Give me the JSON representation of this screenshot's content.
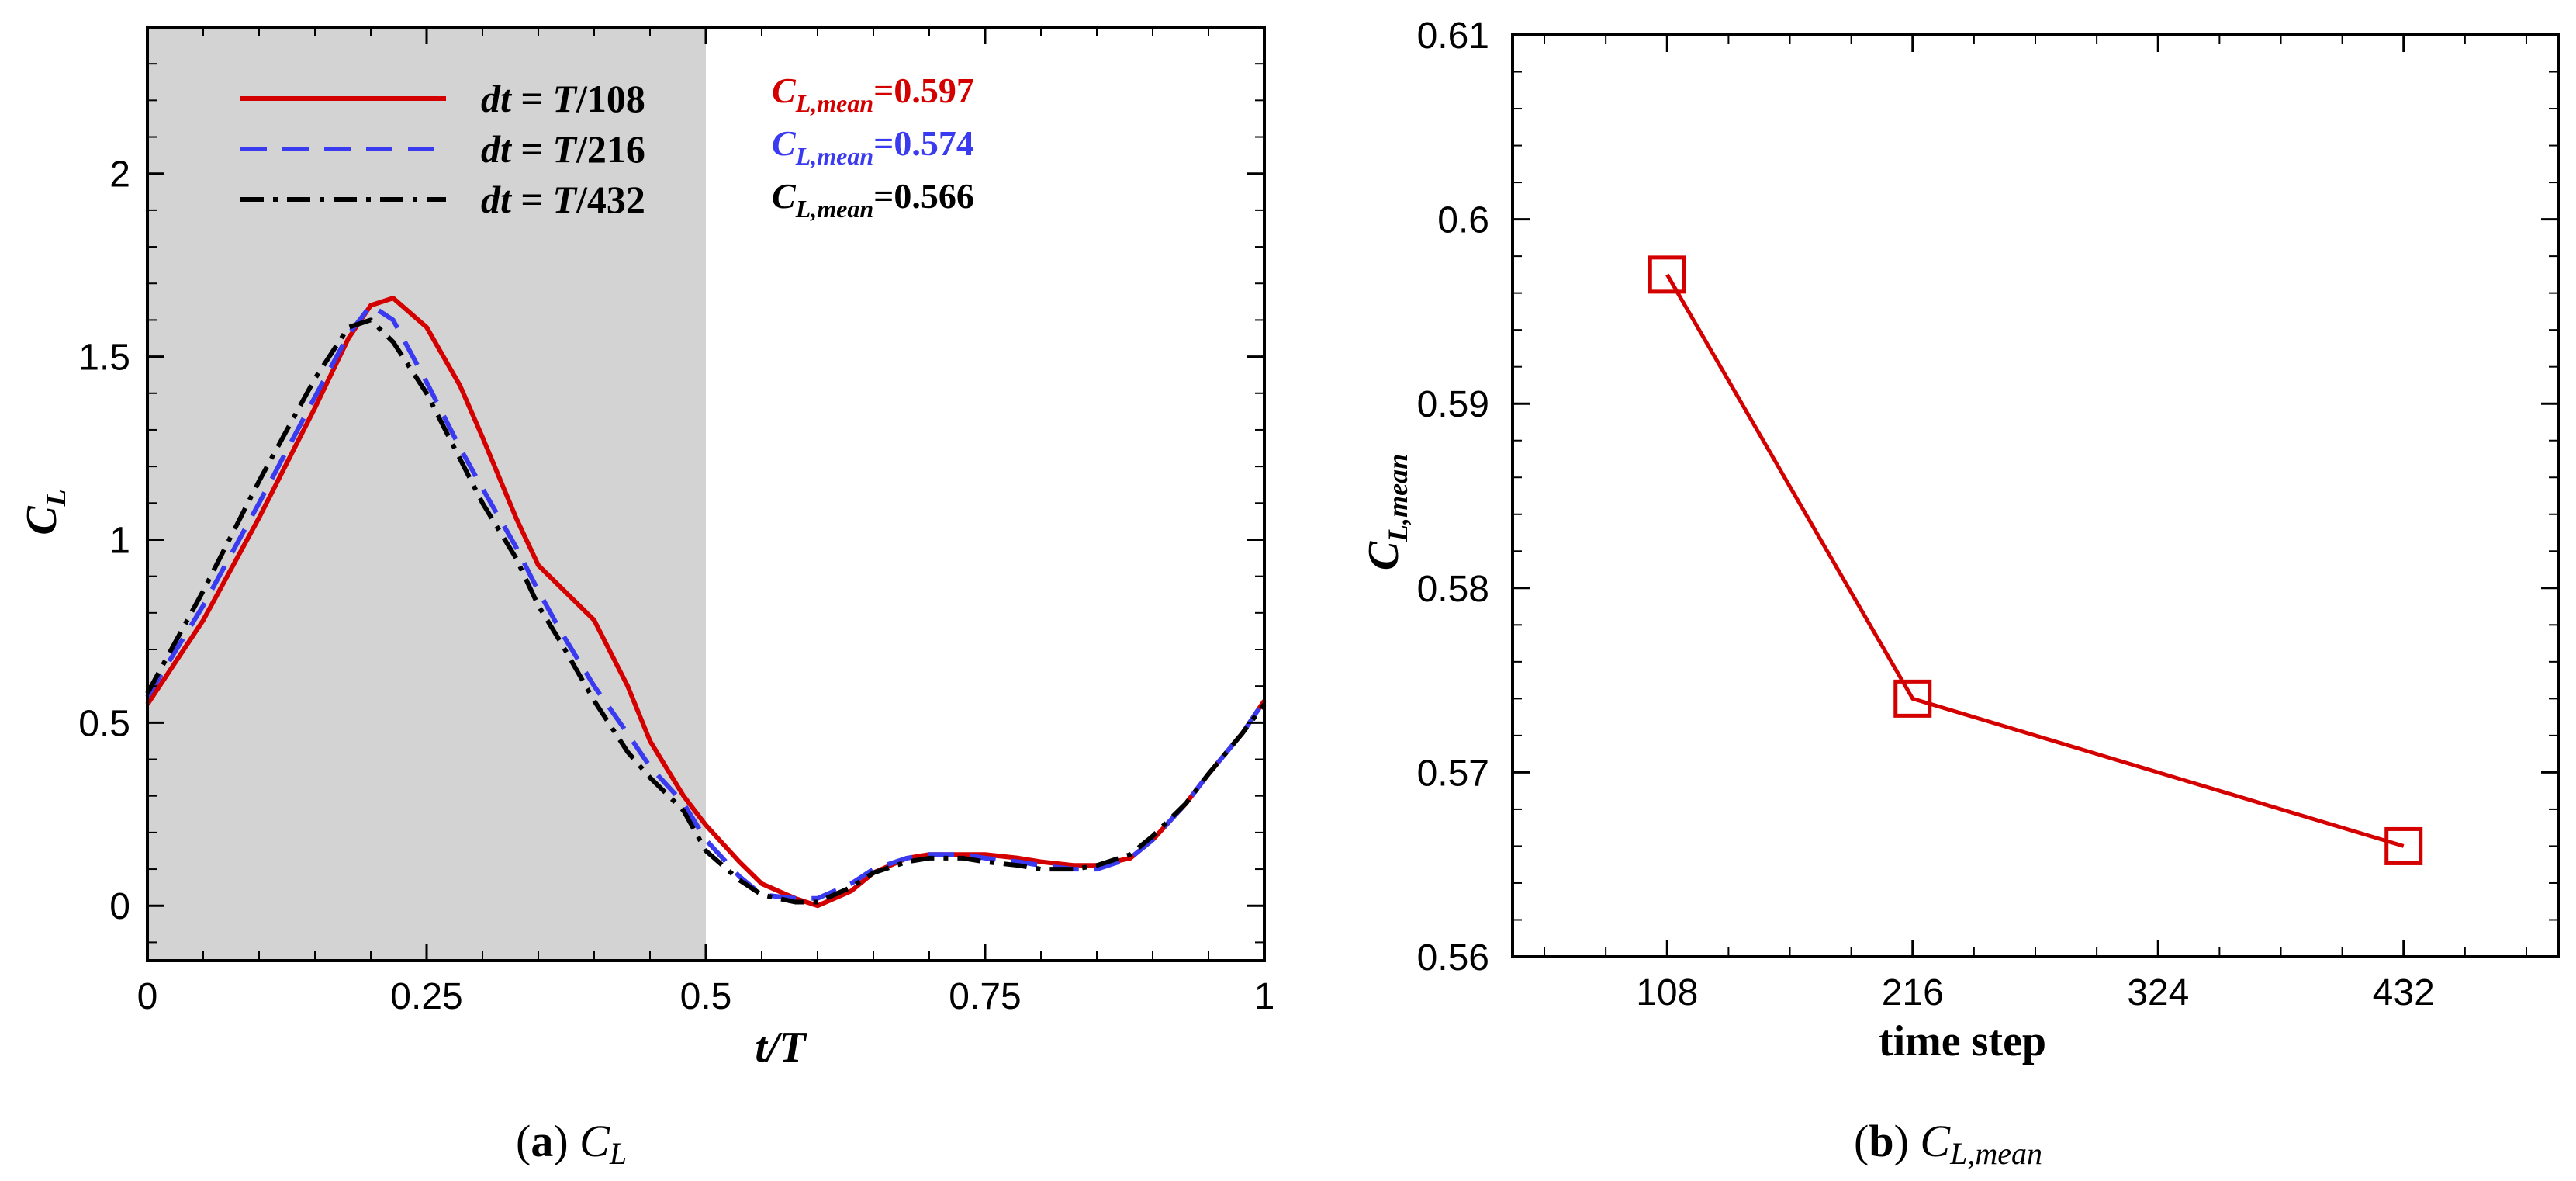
{
  "chart_data": [
    {
      "type": "line",
      "panel_label": "a",
      "caption_text": "C",
      "caption_sub": "L",
      "xlabel": "t/T",
      "ylabel_main": "C",
      "ylabel_sub": "L",
      "xlim": [
        0,
        1
      ],
      "ylim": [
        -0.15,
        2.4
      ],
      "xticks": [
        0,
        0.25,
        0.5,
        0.75,
        1
      ],
      "xtick_labels": [
        "0",
        "0.25",
        "0.5",
        "0.75",
        "1"
      ],
      "yticks": [
        0,
        0.5,
        1,
        1.5,
        2
      ],
      "ytick_labels": [
        "0",
        "0.5",
        "1",
        "1.5",
        "2"
      ],
      "shaded_region": [
        0,
        0.5
      ],
      "series": [
        {
          "name": "dt = T/108",
          "legend_prefix": "dt",
          "legend_mid": " = ",
          "legend_T": "T",
          "legend_den": "/108",
          "color": "#d40000",
          "dash": "solid",
          "mean_label_main": "C",
          "mean_label_sub": "L,mean",
          "mean_value_text": "=0.597",
          "x": [
            0,
            0.05,
            0.1,
            0.15,
            0.18,
            0.2,
            0.22,
            0.25,
            0.28,
            0.3,
            0.33,
            0.35,
            0.37,
            0.4,
            0.43,
            0.45,
            0.48,
            0.5,
            0.53,
            0.55,
            0.58,
            0.6,
            0.63,
            0.65,
            0.68,
            0.7,
            0.73,
            0.75,
            0.78,
            0.8,
            0.83,
            0.85,
            0.88,
            0.9,
            0.93,
            0.95,
            0.98,
            1
          ],
          "y": [
            0.55,
            0.78,
            1.06,
            1.36,
            1.55,
            1.64,
            1.66,
            1.58,
            1.42,
            1.28,
            1.06,
            0.93,
            0.87,
            0.78,
            0.6,
            0.45,
            0.3,
            0.22,
            0.12,
            0.06,
            0.02,
            0.0,
            0.04,
            0.09,
            0.13,
            0.14,
            0.14,
            0.14,
            0.13,
            0.12,
            0.11,
            0.11,
            0.13,
            0.18,
            0.28,
            0.36,
            0.47,
            0.56
          ]
        },
        {
          "name": "dt = T/216",
          "legend_prefix": "dt",
          "legend_mid": " = ",
          "legend_T": "T",
          "legend_den": "/216",
          "color": "#3a3af0",
          "dash": "dashed",
          "mean_label_main": "C",
          "mean_label_sub": "L,mean",
          "mean_value_text": "=0.574",
          "x": [
            0,
            0.05,
            0.1,
            0.15,
            0.18,
            0.2,
            0.22,
            0.25,
            0.28,
            0.3,
            0.33,
            0.35,
            0.37,
            0.4,
            0.43,
            0.45,
            0.48,
            0.5,
            0.53,
            0.55,
            0.58,
            0.6,
            0.63,
            0.65,
            0.68,
            0.7,
            0.73,
            0.75,
            0.78,
            0.8,
            0.83,
            0.85,
            0.88,
            0.9,
            0.93,
            0.95,
            0.98,
            1
          ],
          "y": [
            0.57,
            0.82,
            1.1,
            1.39,
            1.56,
            1.64,
            1.6,
            1.43,
            1.25,
            1.14,
            0.98,
            0.86,
            0.75,
            0.6,
            0.47,
            0.38,
            0.28,
            0.18,
            0.08,
            0.03,
            0.02,
            0.02,
            0.06,
            0.1,
            0.13,
            0.14,
            0.14,
            0.13,
            0.12,
            0.11,
            0.1,
            0.1,
            0.13,
            0.18,
            0.28,
            0.36,
            0.47,
            0.56
          ]
        },
        {
          "name": "dt = T/432",
          "legend_prefix": "dt",
          "legend_mid": " = ",
          "legend_T": "T",
          "legend_den": "/432",
          "color": "#000000",
          "dash": "dashdot",
          "mean_label_main": "C",
          "mean_label_sub": "L,mean",
          "mean_value_text": "=0.566",
          "x": [
            0,
            0.05,
            0.1,
            0.15,
            0.18,
            0.2,
            0.22,
            0.25,
            0.28,
            0.3,
            0.33,
            0.35,
            0.37,
            0.4,
            0.43,
            0.45,
            0.48,
            0.5,
            0.53,
            0.55,
            0.58,
            0.6,
            0.63,
            0.65,
            0.68,
            0.7,
            0.73,
            0.75,
            0.78,
            0.8,
            0.83,
            0.85,
            0.88,
            0.9,
            0.93,
            0.95,
            0.98,
            1
          ],
          "y": [
            0.58,
            0.86,
            1.16,
            1.44,
            1.58,
            1.6,
            1.54,
            1.4,
            1.22,
            1.1,
            0.95,
            0.82,
            0.72,
            0.56,
            0.42,
            0.35,
            0.26,
            0.15,
            0.07,
            0.03,
            0.01,
            0.01,
            0.05,
            0.09,
            0.12,
            0.13,
            0.13,
            0.12,
            0.11,
            0.1,
            0.1,
            0.11,
            0.14,
            0.19,
            0.28,
            0.36,
            0.47,
            0.55
          ]
        }
      ]
    },
    {
      "type": "line",
      "panel_label": "b",
      "caption_text": "C",
      "caption_sub": "L,mean",
      "xlabel": "time step",
      "ylabel_main": "C",
      "ylabel_sub": "L,mean",
      "xlim": [
        40,
        500
      ],
      "ylim": [
        0.56,
        0.61
      ],
      "xticks": [
        108,
        216,
        324,
        432
      ],
      "xtick_labels": [
        "108",
        "216",
        "324",
        "432"
      ],
      "yticks": [
        0.56,
        0.57,
        0.58,
        0.59,
        0.6,
        0.61
      ],
      "ytick_labels": [
        "0.56",
        "0.57",
        "0.58",
        "0.59",
        "0.6",
        "0.61"
      ],
      "series": [
        {
          "name": "C_L,mean",
          "color": "#d40000",
          "marker": "square",
          "x": [
            108,
            216,
            432
          ],
          "y": [
            0.597,
            0.574,
            0.566
          ]
        }
      ]
    }
  ]
}
